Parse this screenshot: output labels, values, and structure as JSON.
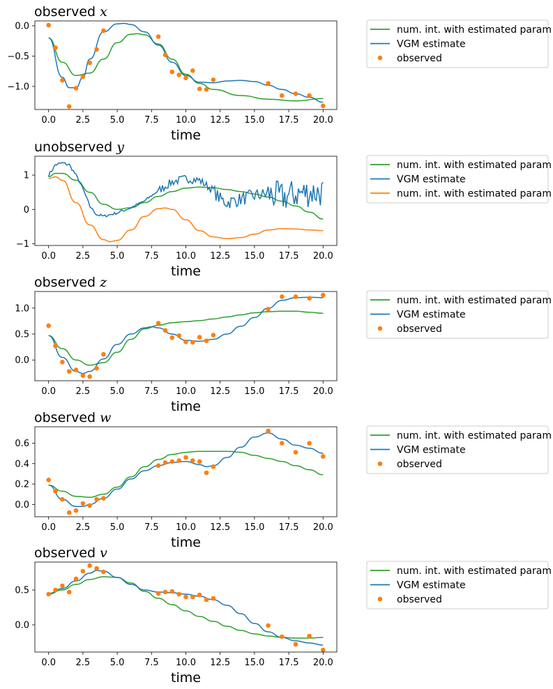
{
  "colors": {
    "green": "#2ca02c",
    "blue": "#1f77b4",
    "orange": "#ff7f0e"
  },
  "chart_data": [
    {
      "type": "line",
      "title_prefix": "observed",
      "title_var": "x",
      "xlabel": "time",
      "xlim": [
        -1,
        21
      ],
      "ylim": [
        -1.38,
        0.08
      ],
      "xticks": [
        "0.0",
        "2.5",
        "5.0",
        "7.5",
        "10.0",
        "12.5",
        "15.0",
        "17.5",
        "20.0"
      ],
      "xtick_values": [
        0,
        2.5,
        5,
        7.5,
        10,
        12.5,
        15,
        17.5,
        20
      ],
      "yticks": [
        "−1.0",
        "−0.5",
        "0.0"
      ],
      "ytick_values": [
        -1.0,
        -0.5,
        0.0
      ],
      "legend_position": "outside-right",
      "series": [
        {
          "name": "num. int. with estimated param",
          "kind": "line",
          "color": "green",
          "x": [
            0,
            1,
            2,
            3,
            4,
            5,
            6,
            6.5,
            7,
            8,
            9,
            10,
            11,
            12,
            14,
            16,
            18,
            20
          ],
          "y": [
            -0.2,
            -0.6,
            -0.82,
            -0.78,
            -0.55,
            -0.28,
            -0.14,
            -0.13,
            -0.15,
            -0.3,
            -0.55,
            -0.8,
            -0.95,
            -1.05,
            -1.15,
            -1.21,
            -1.24,
            -1.2
          ]
        },
        {
          "name": "VGM estimate",
          "kind": "line",
          "color": "blue",
          "x": [
            0,
            1,
            1.5,
            2,
            2.5,
            3,
            4,
            5,
            5.5,
            6,
            7,
            8,
            9,
            10,
            11,
            12,
            13,
            14,
            15,
            16,
            17,
            18,
            19,
            20
          ],
          "y": [
            -0.2,
            -0.85,
            -1.02,
            -1.02,
            -0.85,
            -0.55,
            -0.1,
            0.03,
            0.04,
            0.02,
            -0.1,
            -0.32,
            -0.6,
            -0.82,
            -0.93,
            -0.94,
            -0.91,
            -0.9,
            -0.92,
            -0.98,
            -1.05,
            -1.12,
            -1.18,
            -1.26
          ]
        },
        {
          "name": "observed",
          "kind": "scatter",
          "color": "orange",
          "x": [
            0,
            0.5,
            1,
            1.5,
            2,
            2.5,
            3,
            3.5,
            4,
            8,
            8.5,
            9,
            9.5,
            10,
            10.5,
            11,
            11.5,
            12,
            16,
            17,
            18,
            19,
            20
          ],
          "y": [
            0.01,
            -0.36,
            -0.9,
            -1.33,
            -1.03,
            -0.84,
            -0.61,
            -0.39,
            -0.08,
            -0.18,
            -0.48,
            -0.76,
            -0.81,
            -0.86,
            -0.74,
            -1.04,
            -1.05,
            -0.89,
            -0.95,
            -1.15,
            -1.12,
            -1.15,
            -1.32
          ]
        }
      ]
    },
    {
      "type": "line",
      "title_prefix": "unobserved",
      "title_var": "y",
      "xlabel": "time",
      "xlim": [
        -1,
        21
      ],
      "ylim": [
        -1.05,
        1.55
      ],
      "xticks": [
        "0.0",
        "2.5",
        "5.0",
        "7.5",
        "10.0",
        "12.5",
        "15.0",
        "17.5",
        "20.0"
      ],
      "xtick_values": [
        0,
        2.5,
        5,
        7.5,
        10,
        12.5,
        15,
        17.5,
        20
      ],
      "yticks": [
        "−1",
        "0",
        "1"
      ],
      "ytick_values": [
        -1,
        0,
        1
      ],
      "legend_position": "outside-right",
      "series": [
        {
          "name": "num. int. with estimated param",
          "kind": "line",
          "color": "green",
          "x": [
            0,
            0.5,
            1,
            2,
            3,
            4,
            5,
            6,
            7,
            8,
            9,
            10,
            11,
            12,
            13,
            14,
            15,
            16,
            17,
            18,
            19,
            20
          ],
          "y": [
            0.95,
            1.05,
            1.05,
            0.85,
            0.5,
            0.15,
            0.0,
            0.05,
            0.2,
            0.38,
            0.52,
            0.62,
            0.65,
            0.63,
            0.58,
            0.52,
            0.45,
            0.36,
            0.24,
            0.1,
            -0.08,
            -0.28
          ]
        },
        {
          "name": "VGM estimate",
          "kind": "noisy",
          "color": "blue",
          "x": [
            0,
            0.5,
            1,
            1.5,
            2,
            2.5,
            3,
            3.5,
            4,
            5,
            6,
            7,
            8,
            9,
            10,
            11,
            12,
            12.5,
            13,
            14,
            15,
            16,
            17,
            18,
            19,
            20
          ],
          "y": [
            1.0,
            1.3,
            1.35,
            1.3,
            1.0,
            0.6,
            0.1,
            -0.15,
            -0.2,
            -0.1,
            0.05,
            0.25,
            0.55,
            0.8,
            0.9,
            0.85,
            0.55,
            0.3,
            0.2,
            0.3,
            0.4,
            0.45,
            0.35,
            0.45,
            0.5,
            0.5
          ]
        },
        {
          "name": "num. int. with estimated param",
          "kind": "line",
          "color": "orange",
          "x": [
            0,
            0.5,
            1,
            2,
            3,
            4,
            4.5,
            5,
            6,
            7,
            8,
            8.5,
            9,
            10,
            11,
            12,
            13,
            14,
            15,
            16,
            17,
            18,
            19,
            20
          ],
          "y": [
            0.9,
            0.95,
            0.85,
            0.2,
            -0.45,
            -0.88,
            -0.94,
            -0.9,
            -0.6,
            -0.2,
            0.02,
            0.04,
            0.0,
            -0.3,
            -0.62,
            -0.8,
            -0.85,
            -0.82,
            -0.72,
            -0.6,
            -0.56,
            -0.57,
            -0.6,
            -0.62
          ]
        }
      ]
    },
    {
      "type": "line",
      "title_prefix": "observed",
      "title_var": "z",
      "xlabel": "time",
      "xlim": [
        -1,
        21
      ],
      "ylim": [
        -0.4,
        1.32
      ],
      "xticks": [
        "0.0",
        "2.5",
        "5.0",
        "7.5",
        "10.0",
        "12.5",
        "15.0",
        "17.5",
        "20.0"
      ],
      "xtick_values": [
        0,
        2.5,
        5,
        7.5,
        10,
        12.5,
        15,
        17.5,
        20
      ],
      "yticks": [
        "0.0",
        "0.5",
        "1.0"
      ],
      "ytick_values": [
        0.0,
        0.5,
        1.0
      ],
      "legend_position": "outside-right",
      "series": [
        {
          "name": "num. int. with estimated param",
          "kind": "line",
          "color": "green",
          "x": [
            0,
            1,
            2,
            3,
            4,
            5,
            6,
            7,
            8,
            9,
            10,
            11,
            12,
            13,
            14,
            15,
            16,
            17,
            18,
            19,
            20
          ],
          "y": [
            0.47,
            0.22,
            0.0,
            -0.1,
            -0.05,
            0.15,
            0.4,
            0.6,
            0.67,
            0.72,
            0.74,
            0.76,
            0.79,
            0.83,
            0.87,
            0.91,
            0.93,
            0.94,
            0.94,
            0.92,
            0.9
          ]
        },
        {
          "name": "VGM estimate",
          "kind": "line",
          "color": "blue",
          "x": [
            0,
            1,
            2,
            2.5,
            3,
            4,
            5,
            6,
            7,
            7.5,
            8,
            9,
            10,
            11,
            12,
            13,
            14,
            15,
            16,
            17,
            18,
            19,
            20
          ],
          "y": [
            0.47,
            0.05,
            -0.22,
            -0.26,
            -0.22,
            0.02,
            0.3,
            0.5,
            0.62,
            0.64,
            0.62,
            0.5,
            0.38,
            0.36,
            0.4,
            0.5,
            0.65,
            0.82,
            1.0,
            1.15,
            1.2,
            1.21,
            1.2
          ]
        },
        {
          "name": "observed",
          "kind": "scatter",
          "color": "orange",
          "x": [
            0,
            0.5,
            1,
            1.5,
            2,
            2.5,
            3,
            3.5,
            4,
            8,
            8.5,
            9,
            9.5,
            10,
            10.5,
            11,
            11.5,
            12,
            16,
            17,
            18,
            19,
            20
          ],
          "y": [
            0.66,
            0.27,
            -0.04,
            -0.22,
            -0.19,
            -0.3,
            -0.32,
            -0.16,
            0.11,
            0.71,
            0.57,
            0.43,
            0.47,
            0.35,
            0.34,
            0.44,
            0.37,
            0.48,
            0.98,
            1.22,
            1.22,
            1.19,
            1.25
          ]
        }
      ]
    },
    {
      "type": "line",
      "title_prefix": "observed",
      "title_var": "w",
      "xlabel": "time",
      "xlim": [
        -1,
        21
      ],
      "ylim": [
        -0.12,
        0.76
      ],
      "xticks": [
        "0.0",
        "2.5",
        "5.0",
        "7.5",
        "10.0",
        "12.5",
        "15.0",
        "17.5",
        "20.0"
      ],
      "xtick_values": [
        0,
        2.5,
        5,
        7.5,
        10,
        12.5,
        15,
        17.5,
        20
      ],
      "yticks": [
        "0.0",
        "0.2",
        "0.4",
        "0.6"
      ],
      "ytick_values": [
        0.0,
        0.2,
        0.4,
        0.6
      ],
      "legend_position": "outside-right",
      "series": [
        {
          "name": "num. int. with estimated param",
          "kind": "line",
          "color": "green",
          "x": [
            0,
            1,
            2,
            3,
            4,
            5,
            6,
            7,
            8,
            9,
            10,
            11,
            12,
            13,
            14,
            15,
            16,
            17,
            18,
            19,
            20
          ],
          "y": [
            0.19,
            0.13,
            0.08,
            0.07,
            0.1,
            0.17,
            0.27,
            0.37,
            0.44,
            0.49,
            0.51,
            0.52,
            0.52,
            0.52,
            0.51,
            0.48,
            0.45,
            0.42,
            0.38,
            0.34,
            0.29
          ]
        },
        {
          "name": "VGM estimate",
          "kind": "line",
          "color": "blue",
          "x": [
            0,
            1,
            2,
            2.5,
            3,
            4,
            5,
            6,
            7,
            8,
            9,
            10,
            11,
            11.5,
            12,
            13,
            14,
            15,
            16,
            17,
            18,
            19,
            20
          ],
          "y": [
            0.19,
            0.05,
            -0.02,
            -0.02,
            0.0,
            0.06,
            0.15,
            0.25,
            0.33,
            0.38,
            0.41,
            0.42,
            0.39,
            0.37,
            0.38,
            0.46,
            0.56,
            0.66,
            0.7,
            0.64,
            0.58,
            0.55,
            0.5
          ]
        },
        {
          "name": "observed",
          "kind": "scatter",
          "color": "orange",
          "x": [
            0,
            0.5,
            1,
            1.5,
            2,
            2.5,
            3,
            3.5,
            4,
            8,
            8.5,
            9,
            9.5,
            10,
            10.5,
            11,
            11.5,
            12,
            16,
            17,
            18,
            19,
            20
          ],
          "y": [
            0.24,
            0.13,
            0.05,
            -0.08,
            -0.06,
            0.01,
            -0.01,
            0.05,
            0.06,
            0.38,
            0.41,
            0.42,
            0.43,
            0.46,
            0.43,
            0.42,
            0.31,
            0.37,
            0.72,
            0.6,
            0.51,
            0.6,
            0.47
          ]
        }
      ]
    },
    {
      "type": "line",
      "title_prefix": "observed",
      "title_var": "v",
      "xlabel": "time",
      "xlim": [
        -1,
        21
      ],
      "ylim": [
        -0.39,
        0.9
      ],
      "xticks": [
        "0.0",
        "2.5",
        "5.0",
        "7.5",
        "10.0",
        "12.5",
        "15.0",
        "17.5",
        "20.0"
      ],
      "xtick_values": [
        0,
        2.5,
        5,
        7.5,
        10,
        12.5,
        15,
        17.5,
        20
      ],
      "yticks": [
        "0.0",
        "0.5"
      ],
      "ytick_values": [
        0.0,
        0.5
      ],
      "legend_position": "outside-right",
      "series": [
        {
          "name": "num. int. with estimated param",
          "kind": "line",
          "color": "green",
          "x": [
            0,
            1,
            2,
            3,
            4,
            5,
            6,
            7,
            8,
            9,
            10,
            11,
            12,
            13,
            14,
            15,
            16,
            17,
            18,
            19,
            20
          ],
          "y": [
            0.44,
            0.5,
            0.58,
            0.65,
            0.69,
            0.68,
            0.6,
            0.48,
            0.38,
            0.29,
            0.2,
            0.12,
            0.05,
            -0.02,
            -0.08,
            -0.13,
            -0.16,
            -0.18,
            -0.19,
            -0.19,
            -0.18
          ]
        },
        {
          "name": "VGM estimate",
          "kind": "line",
          "color": "blue",
          "x": [
            0,
            1,
            2,
            3,
            3.5,
            4,
            5,
            6,
            7,
            8,
            9,
            10,
            11,
            12,
            13,
            14,
            15,
            16,
            17,
            18,
            19,
            20
          ],
          "y": [
            0.45,
            0.52,
            0.63,
            0.74,
            0.78,
            0.77,
            0.68,
            0.58,
            0.5,
            0.47,
            0.46,
            0.44,
            0.41,
            0.36,
            0.28,
            0.16,
            0.02,
            -0.1,
            -0.18,
            -0.23,
            -0.26,
            -0.29
          ]
        },
        {
          "name": "observed",
          "kind": "scatter",
          "color": "orange",
          "x": [
            0,
            0.5,
            1,
            1.5,
            2,
            2.5,
            3,
            3.5,
            4,
            8,
            8.5,
            9,
            9.5,
            10,
            10.5,
            11,
            11.5,
            12,
            16,
            17,
            18,
            19,
            20
          ],
          "y": [
            0.44,
            0.5,
            0.56,
            0.47,
            0.66,
            0.77,
            0.85,
            0.81,
            0.76,
            0.45,
            0.47,
            0.48,
            0.44,
            0.4,
            0.4,
            0.43,
            0.36,
            0.38,
            -0.01,
            -0.17,
            -0.28,
            -0.16,
            -0.36
          ]
        }
      ]
    }
  ]
}
